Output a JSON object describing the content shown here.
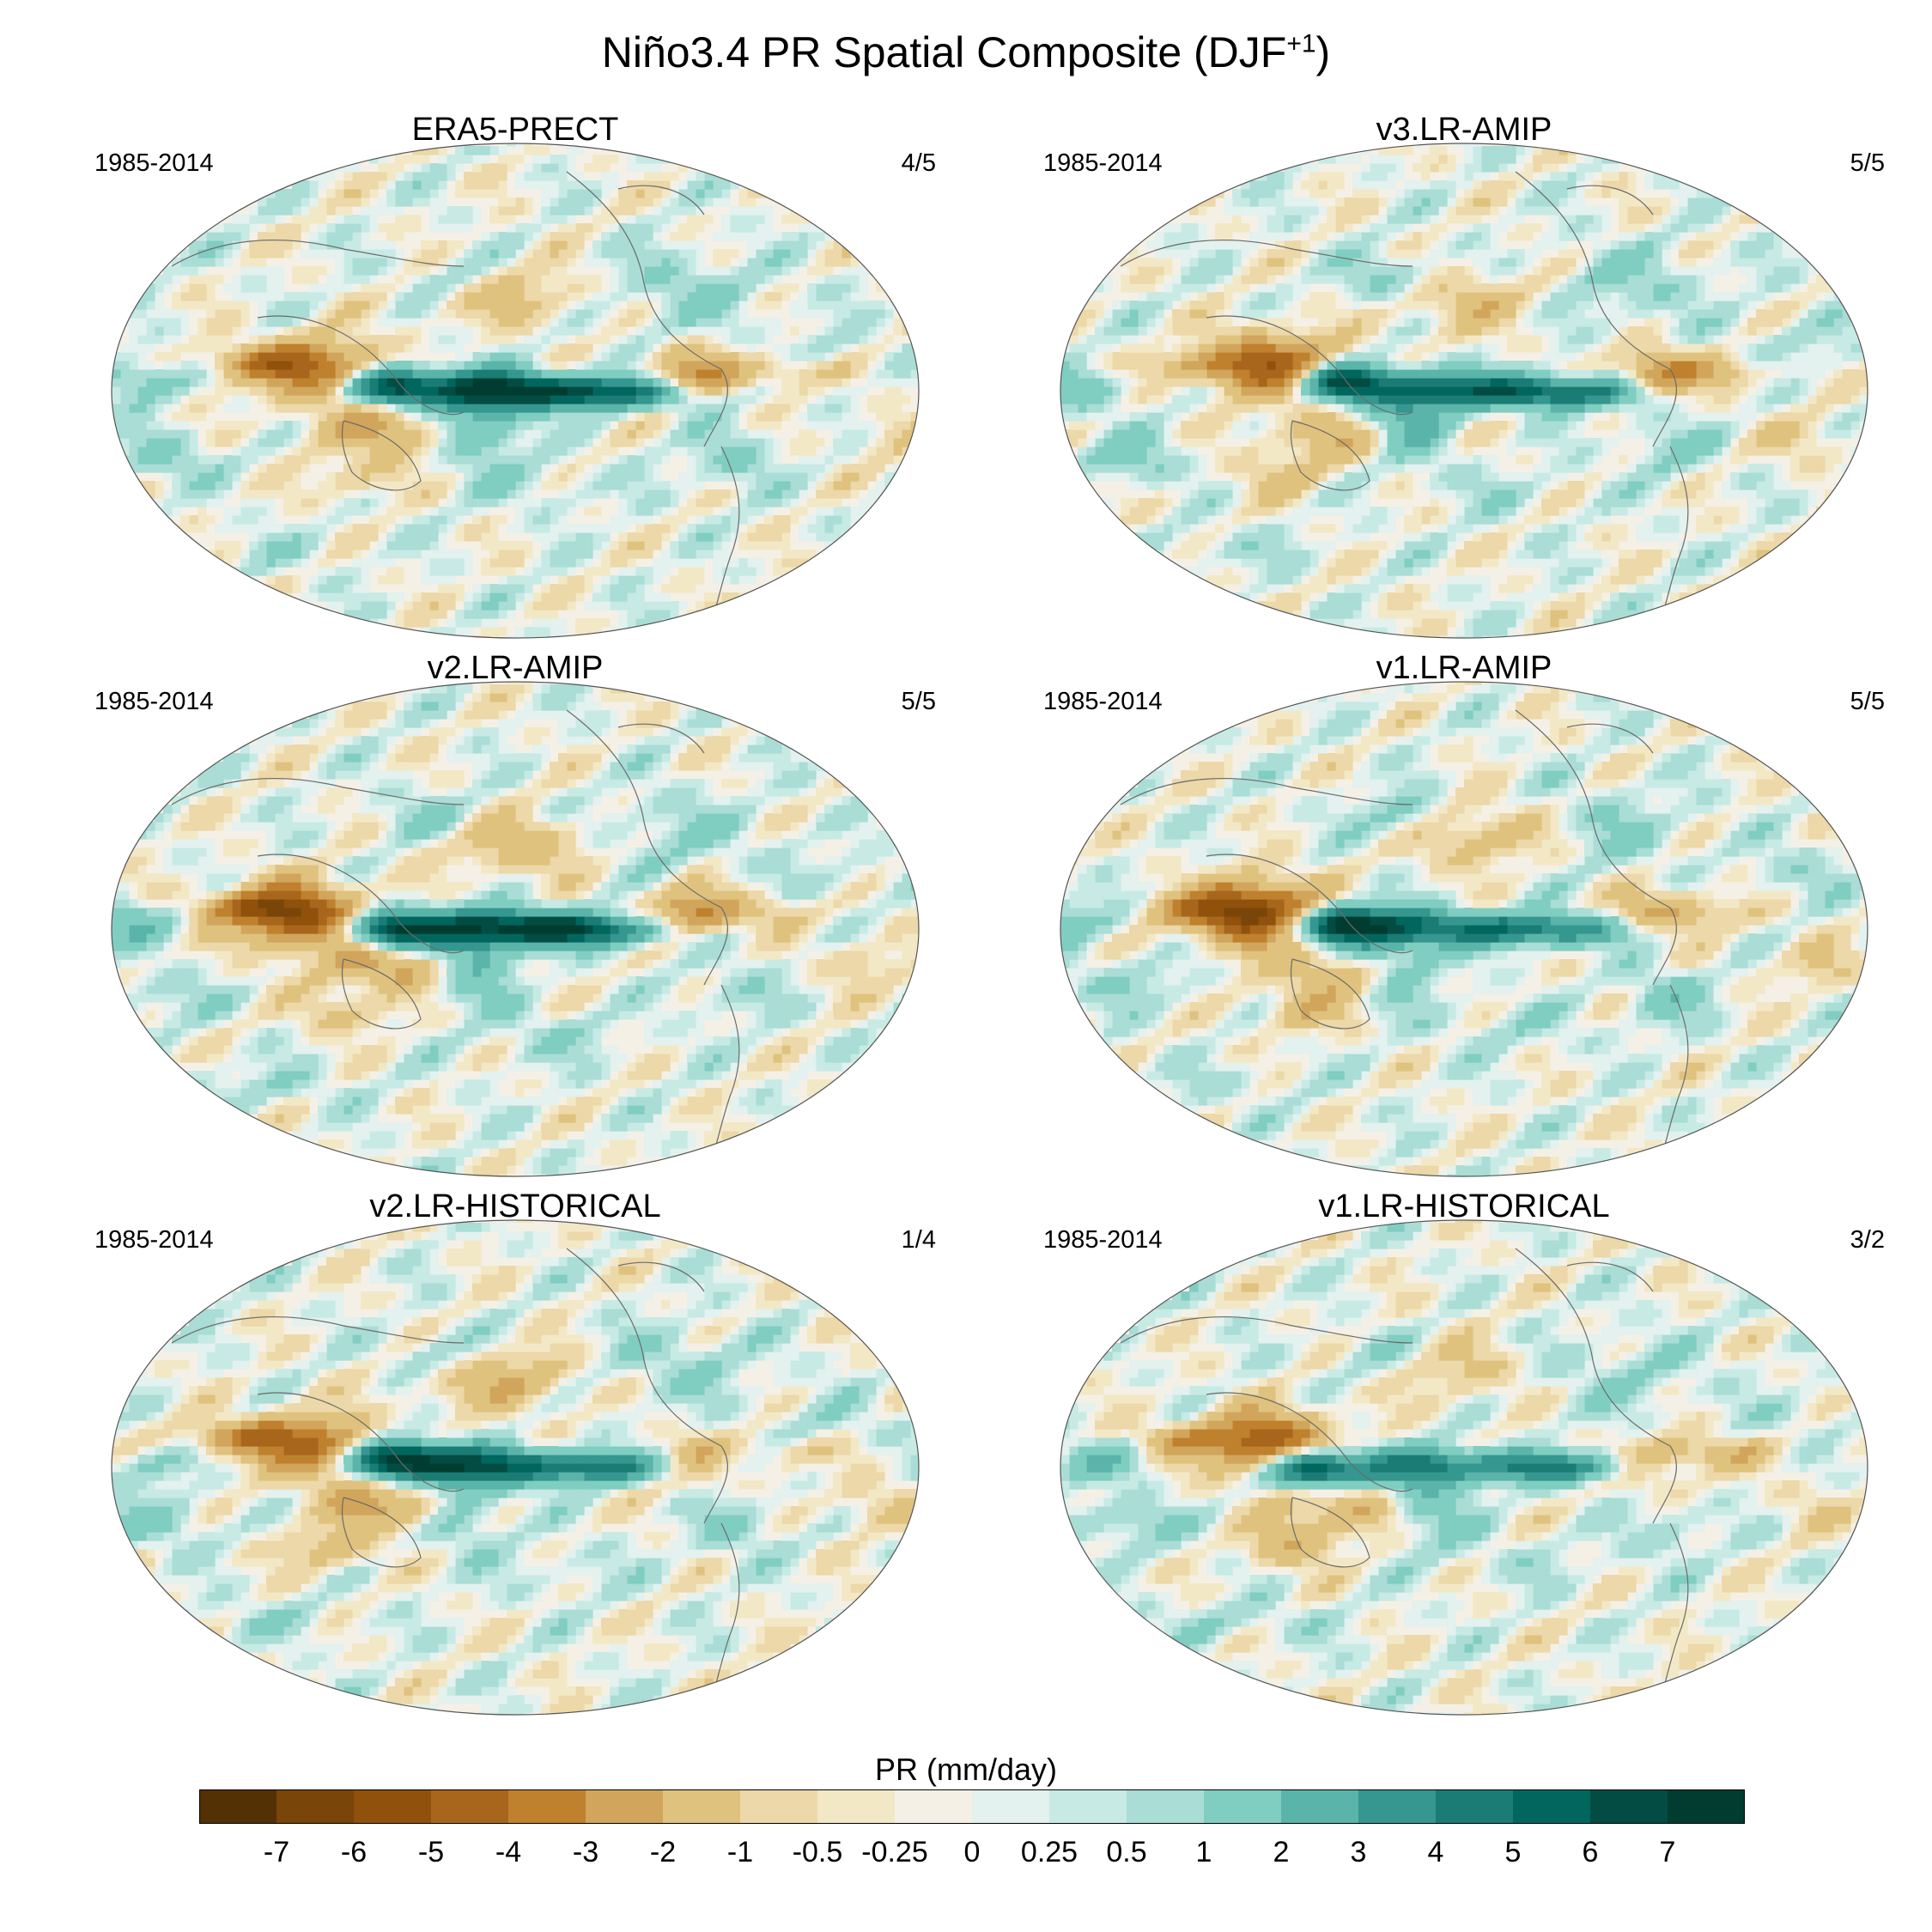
{
  "title_main": "Niño3.4 PR Spatial Composite (DJF",
  "title_sup": "+1",
  "title_close": ")",
  "panels": [
    {
      "name": "ERA5-PRECT",
      "years": "1985-2014",
      "ratio": "4/5",
      "seed": 1
    },
    {
      "name": "v3.LR-AMIP",
      "years": "1985-2014",
      "ratio": "5/5",
      "seed": 2
    },
    {
      "name": "v2.LR-AMIP",
      "years": "1985-2014",
      "ratio": "5/5",
      "seed": 3
    },
    {
      "name": "v1.LR-AMIP",
      "years": "1985-2014",
      "ratio": "5/5",
      "seed": 4
    },
    {
      "name": "v2.LR-HISTORICAL",
      "years": "1985-2014",
      "ratio": "1/4",
      "seed": 5
    },
    {
      "name": "v1.LR-HISTORICAL",
      "years": "1985-2014",
      "ratio": "3/2",
      "seed": 6
    }
  ],
  "colorbar": {
    "label": "PR (mm/day)",
    "ticks": [
      "-7",
      "-6",
      "-5",
      "-4",
      "-3",
      "-2",
      "-1",
      "-0.5",
      "-0.25",
      "0",
      "0.25",
      "0.5",
      "1",
      "2",
      "3",
      "4",
      "5",
      "6",
      "7"
    ],
    "colors": [
      "#543005",
      "#7a4508",
      "#8f510b",
      "#a8661d",
      "#bf812d",
      "#d1a55c",
      "#dfc27d",
      "#ecd8a8",
      "#f3e8c6",
      "#f5f0e6",
      "#e3f1ef",
      "#c7eae5",
      "#a9ddd5",
      "#80cdc1",
      "#5ab4a9",
      "#35978f",
      "#1a7c74",
      "#01665e",
      "#024c43",
      "#003c30"
    ]
  }
}
